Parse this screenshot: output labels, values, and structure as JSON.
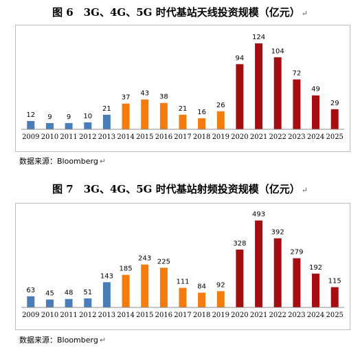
{
  "charts": [
    {
      "title": "图 6　3G、4G、5G 时代基站天线投资规模（亿元）",
      "source": "数据来源：Bloomberg",
      "colors": {
        "3G": "#4a7ebb",
        "4G": "#f47c0f",
        "5G": "#a50d10"
      }
    },
    {
      "title": "图 7　3G、4G、5G 时代基站射频投资规模（亿元）",
      "source": "数据来源：Bloomberg",
      "colors": {
        "3G": "#4a7ebb",
        "4G": "#f47c0f",
        "5G": "#a50d10"
      }
    }
  ],
  "return_mark": "↵",
  "chart_data": [
    {
      "type": "bar",
      "title": "图 6　3G、4G、5G 时代基站天线投资规模（亿元）",
      "categories": [
        "2009",
        "2010",
        "2011",
        "2012",
        "2013",
        "2014",
        "2015",
        "2016",
        "2017",
        "2018",
        "2019",
        "2020",
        "2021",
        "2022",
        "2023",
        "2024",
        "2025"
      ],
      "values": [
        12,
        9,
        9,
        10,
        21,
        37,
        43,
        38,
        21,
        16,
        26,
        94,
        124,
        104,
        72,
        49,
        29
      ],
      "era": [
        "3G",
        "3G",
        "3G",
        "3G",
        "3G",
        "4G",
        "4G",
        "4G",
        "4G",
        "4G",
        "4G",
        "5G",
        "5G",
        "5G",
        "5G",
        "5G",
        "5G"
      ],
      "ylim": [
        0,
        140
      ],
      "data_labels": true,
      "grid": false,
      "legend": "none"
    },
    {
      "type": "bar",
      "title": "图 7　3G、4G、5G 时代基站射频投资规模（亿元）",
      "categories": [
        "2009",
        "2010",
        "2011",
        "2012",
        "2013",
        "2014",
        "2015",
        "2016",
        "2017",
        "2018",
        "2019",
        "2020",
        "2021",
        "2022",
        "2023",
        "2024",
        "2025"
      ],
      "values": [
        63,
        45,
        48,
        51,
        143,
        185,
        243,
        225,
        111,
        84,
        92,
        328,
        493,
        392,
        279,
        192,
        115
      ],
      "era": [
        "3G",
        "3G",
        "3G",
        "3G",
        "3G",
        "4G",
        "4G",
        "4G",
        "4G",
        "4G",
        "4G",
        "5G",
        "5G",
        "5G",
        "5G",
        "5G",
        "5G"
      ],
      "ylim": [
        0,
        550
      ],
      "data_labels": true,
      "grid": false,
      "legend": "none"
    }
  ]
}
